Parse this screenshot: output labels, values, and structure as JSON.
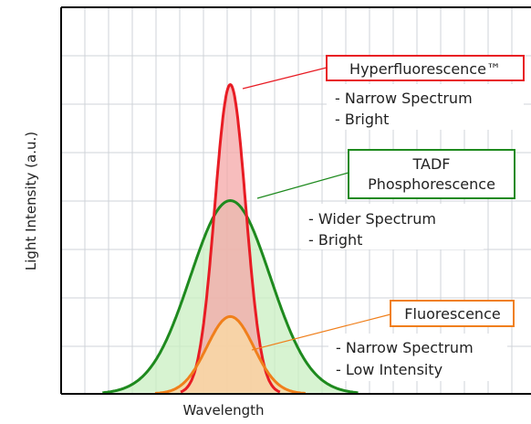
{
  "chart_data": {
    "type": "area",
    "xlabel": "Wavelength",
    "ylabel": "Light Intensity (a.u.)",
    "grid": true,
    "x_range": [
      0,
      10
    ],
    "y_range": [
      0,
      10
    ],
    "series": [
      {
        "name": "Fluorescence",
        "color": "#f07f1b",
        "peak_x": 3.6,
        "peak_y": 2.0,
        "width": 0.5,
        "notes": [
          "- Narrow Spectrum",
          "- Low Intensity"
        ]
      },
      {
        "name": "Hyperfluorescence™",
        "color": "#e81c24",
        "peak_x": 3.6,
        "peak_y": 8.0,
        "width": 0.33,
        "notes": [
          "-  Narrow Spectrum",
          "-  Bright"
        ]
      },
      {
        "name": "TADF Phosphorescence",
        "name_lines": [
          "TADF",
          "Phosphorescence"
        ],
        "color": "#1e8a1e",
        "peak_x": 3.6,
        "peak_y": 5.0,
        "width": 0.85,
        "notes": [
          "-  Wider Spectrum",
          "-  Bright"
        ]
      }
    ]
  }
}
